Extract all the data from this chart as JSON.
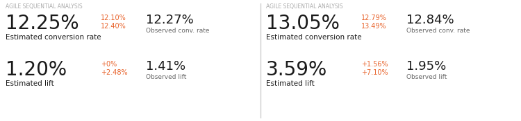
{
  "panels": [
    {
      "title": "AGILE SEQUENTIAL ANALYSIS",
      "conv_rate_main": "12.25%",
      "conv_rate_low": "12.10%",
      "conv_rate_high": "12.40%",
      "conv_rate_label": "Estimated conversion rate",
      "obs_conv_rate": "12.27%",
      "obs_conv_label": "Observed conv. rate",
      "lift_main": "1.20%",
      "lift_low": "+0%",
      "lift_high": "+2.48%",
      "lift_label": "Estimated lift",
      "obs_lift": "1.41%",
      "obs_lift_label": "Observed lift"
    },
    {
      "title": "AGILE SEQUENTIAL ANALYSIS",
      "conv_rate_main": "13.05%",
      "conv_rate_low": "12.79%",
      "conv_rate_high": "13.49%",
      "conv_rate_label": "Estimated conversion rate",
      "obs_conv_rate": "12.84%",
      "obs_conv_label": "Observed conv. rate",
      "lift_main": "3.59%",
      "lift_low": "+1.56%",
      "lift_high": "+7.10%",
      "lift_label": "Estimated lift",
      "obs_lift": "1.95%",
      "obs_lift_label": "Observed lift"
    }
  ],
  "bg_color": "#ffffff",
  "title_color": "#aaaaaa",
  "main_color": "#1a1a1a",
  "label_color": "#666666",
  "range_color": "#e8622a",
  "divider_color": "#cccccc",
  "title_fontsize": 5.5,
  "main_fontsize": 20,
  "range_fontsize": 7.0,
  "label_fontsize": 7.5,
  "obs_main_fontsize": 13,
  "obs_label_fontsize": 6.5
}
